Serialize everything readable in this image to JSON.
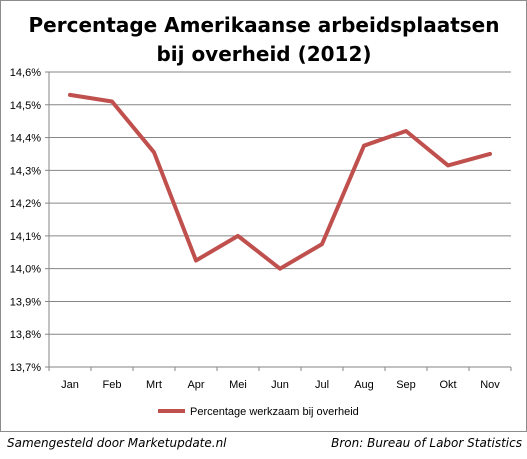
{
  "chart_data": {
    "type": "line",
    "title": [
      "Percentage Amerikaanse arbeidsplaatsen",
      "bij overheid (2012)"
    ],
    "categories": [
      "Jan",
      "Feb",
      "Mrt",
      "Apr",
      "Mei",
      "Jun",
      "Jul",
      "Aug",
      "Sep",
      "Okt",
      "Nov"
    ],
    "series": [
      {
        "name": "Percentage werkzaam bij overheid",
        "color": "#c0504d",
        "values": [
          14.53,
          14.51,
          14.355,
          14.025,
          14.1,
          14.0,
          14.075,
          14.375,
          14.42,
          14.315,
          14.35
        ]
      }
    ],
    "ylim": [
      13.7,
      14.6
    ],
    "yticks": [
      "13,7%",
      "13,8%",
      "13,9%",
      "14,0%",
      "14,1%",
      "14,2%",
      "14,3%",
      "14,4%",
      "14,5%",
      "14,6%"
    ],
    "ytick_values": [
      13.7,
      13.8,
      13.9,
      14.0,
      14.1,
      14.2,
      14.3,
      14.4,
      14.5,
      14.6
    ],
    "grid": true,
    "legend_position": "bottom"
  },
  "footer": {
    "left": "Samengesteld door Marketupdate.nl",
    "right": "Bron: Bureau of Labor Statistics"
  }
}
